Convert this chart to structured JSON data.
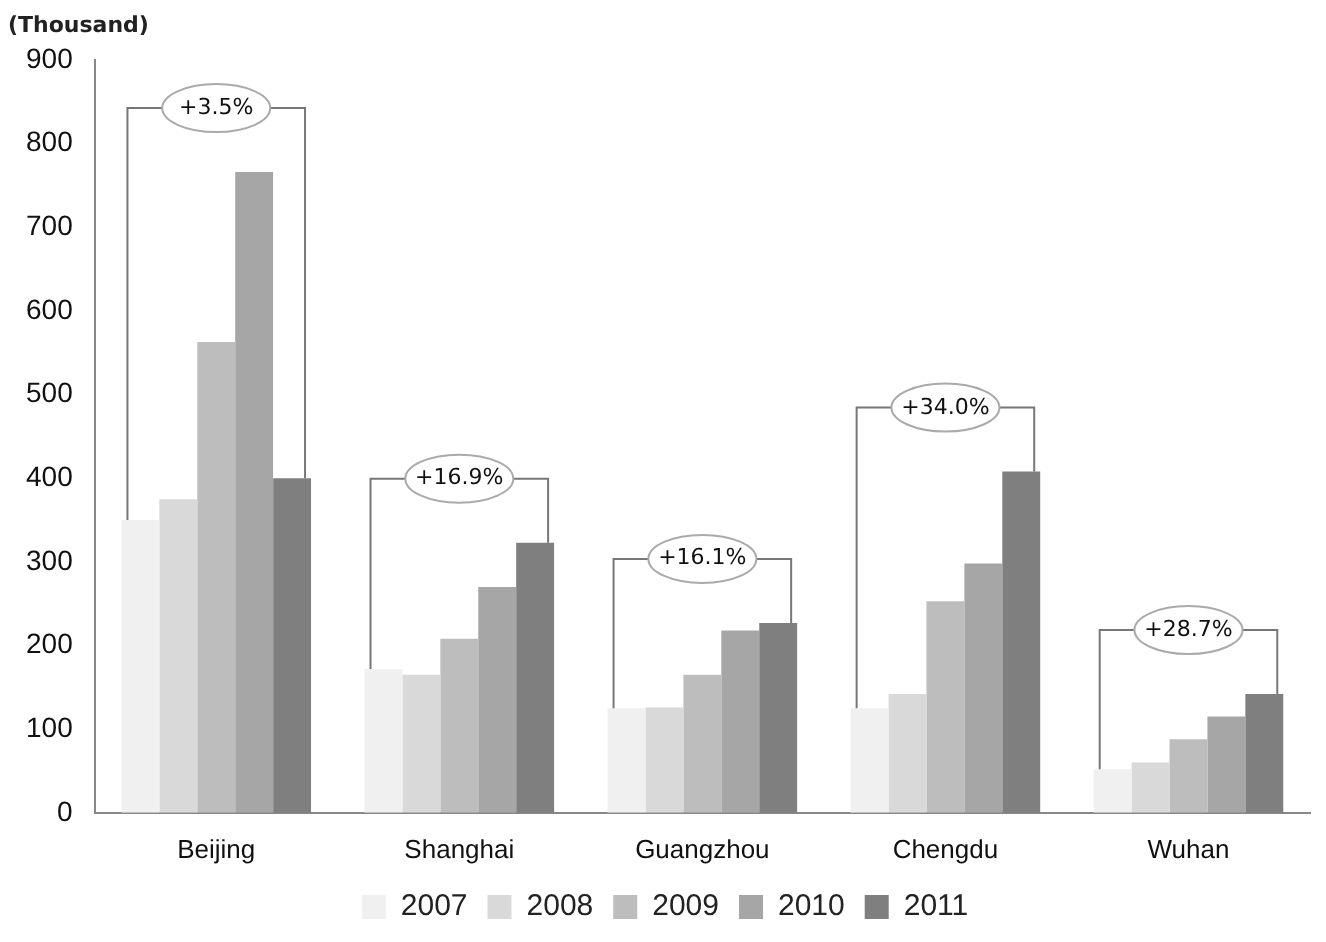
{
  "chart_data": {
    "type": "bar",
    "ylabel": "(Thousand)",
    "categories": [
      "Beijing",
      "Shanghai",
      "Guangzhou",
      "Chengdu",
      "Wuhan"
    ],
    "series": [
      {
        "name": "2007",
        "color": "#f0f0f0",
        "values": [
          350,
          172,
          125,
          125,
          52
        ]
      },
      {
        "name": "2008",
        "color": "#d9d9d9",
        "values": [
          375,
          165,
          126,
          142,
          60
        ]
      },
      {
        "name": "2009",
        "color": "#bdbdbd",
        "values": [
          563,
          208,
          165,
          253,
          88
        ]
      },
      {
        "name": "2010",
        "color": "#a6a6a6",
        "values": [
          766,
          270,
          218,
          298,
          115
        ]
      },
      {
        "name": "2011",
        "color": "#7f7f7f",
        "values": [
          400,
          323,
          227,
          408,
          142
        ]
      }
    ],
    "annotations": [
      "+3.5%",
      "+16.9%",
      "+16.1%",
      "+34.0%",
      "+28.7%"
    ],
    "ylim": [
      0,
      900
    ],
    "yticks": [
      0,
      100,
      200,
      300,
      400,
      500,
      600,
      700,
      800,
      900
    ],
    "grid": false,
    "legend": "bottom"
  }
}
